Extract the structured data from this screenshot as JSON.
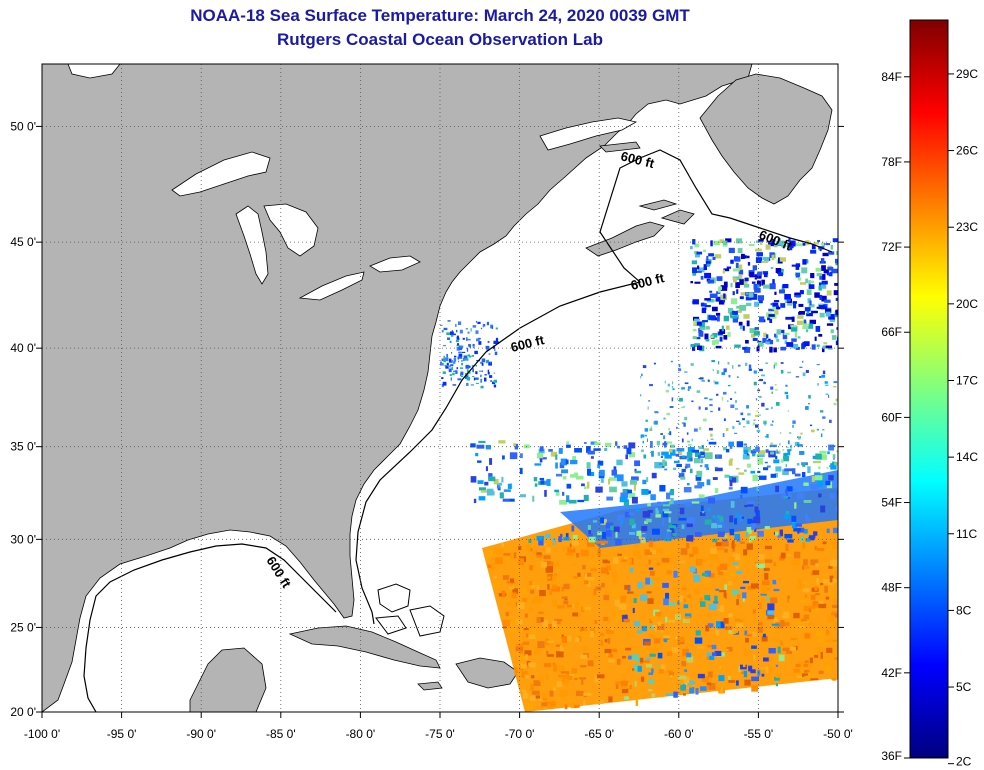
{
  "title": {
    "line1": "NOAA-18 Sea Surface Temperature:  March 24, 2020 0039 GMT",
    "line2": "Rutgers Coastal Ocean Observation Lab",
    "color": "#1a1aa6"
  },
  "map": {
    "lon_range": [
      -100,
      -50
    ],
    "lat_range": [
      20,
      52.5
    ],
    "lon_ticks": [
      "-100 0'",
      "-95 0'",
      "-90 0'",
      "-85 0'",
      "-80 0'",
      "-75 0'",
      "-70 0'",
      "-65 0'",
      "-60 0'",
      "-55 0'",
      "-50 0'"
    ],
    "lat_ticks": [
      "20 0'",
      "25 0'",
      "30 0'",
      "35 0'",
      "40 0'",
      "45 0'",
      "50 0'"
    ],
    "land_color": "#b4b4b4",
    "ocean_color": "#ffffff",
    "contour_labels": [
      "600 ft",
      "600 ft",
      "600 ft",
      "600 ft",
      "600 ft"
    ]
  },
  "colorbar": {
    "fahrenheit_labels": [
      "36F",
      "42F",
      "48F",
      "54F",
      "60F",
      "66F",
      "72F",
      "78F",
      "84F"
    ],
    "celsius_labels": [
      "2C",
      "5C",
      "8C",
      "11C",
      "14C",
      "17C",
      "20C",
      "23C",
      "26C",
      "29C"
    ],
    "colors": [
      "#00007f",
      "#0000ff",
      "#007fff",
      "#00ffff",
      "#7fff7f",
      "#ffff00",
      "#ff7f00",
      "#ff0000",
      "#7f0000"
    ]
  }
}
